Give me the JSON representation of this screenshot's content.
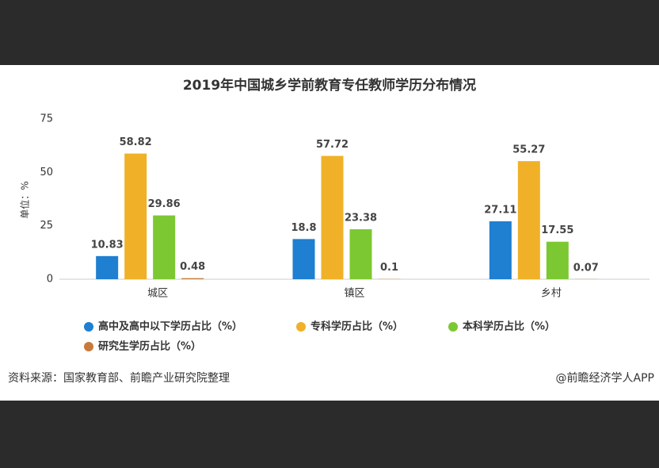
{
  "chart_data": {
    "type": "bar",
    "title": "2019年中国城乡学前教育专任教师学历分布情况",
    "y_label": "单位：%",
    "categories": [
      "城区",
      "镇区",
      "乡村"
    ],
    "series": [
      {
        "name": "高中及高中以下学历占比（%）",
        "color": "#1f7fd0",
        "values": [
          10.83,
          18.8,
          27.11
        ]
      },
      {
        "name": "专科学历占比（%）",
        "color": "#f0b128",
        "values": [
          58.82,
          57.72,
          55.27
        ]
      },
      {
        "name": "本科学历占比（%）",
        "color": "#7cc832",
        "values": [
          29.86,
          23.38,
          17.55
        ]
      },
      {
        "name": "研究生学历占比（%）",
        "color": "#c87a3a",
        "values": [
          0.48,
          0.1,
          0.07
        ]
      }
    ],
    "ylim": [
      0,
      75
    ],
    "yticks": [
      0,
      25,
      50,
      75
    ],
    "grid": false,
    "source": "资料来源：国家教育部、前瞻产业研究院整理",
    "credit": "@前瞻经济学人APP"
  }
}
